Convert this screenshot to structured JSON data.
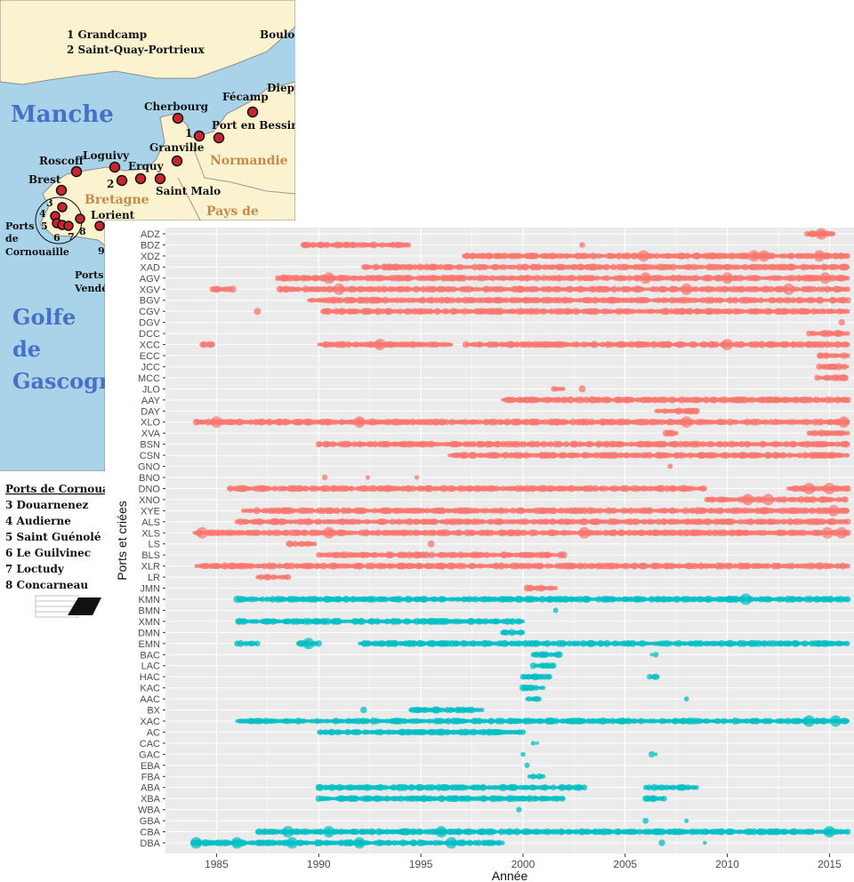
{
  "map": {
    "list_1": "1 Grandcamp",
    "list_2": "2 Saint-Quay-Portrieux",
    "sea_manche": "Manche",
    "golfe_1": "Golfe",
    "golfe_2": "de",
    "golfe_3": "Gascogr",
    "region_normandie": "Normandie",
    "region_bretagne": "Bretagne",
    "region_pays": "Pays de",
    "ports_corn_1": "Ports",
    "ports_corn_2": "de",
    "ports_corn_3": "Cornouaille",
    "ports_vend_1": "Ports",
    "ports_vend_2": "Vendé",
    "cities": {
      "boulogne": "Boulog",
      "dieppe": "Diepp",
      "fecamp": "Fécamp",
      "cherbourg": "Cherbourg",
      "port_bessin": "Port en Bessin",
      "granville": "Granville",
      "saint_malo": "Saint Malo",
      "roscoff": "Roscoff",
      "loguivy": "Loguivy",
      "erquy": "Erquy",
      "brest": "Brest",
      "lorient": "Lorient"
    },
    "nums": {
      "n1": "1",
      "n2": "2",
      "n3": "3",
      "n4": "4",
      "n5": "5",
      "n6": "6",
      "n7": "7",
      "n8": "8",
      "n9": "9"
    },
    "legend_title": "Ports de Cornouai",
    "legend_items": [
      "3 Douarnenez",
      "4 Audierne",
      "5 Saint Guénolé",
      "6 Le Guilvinec",
      "7 Loctudy",
      "8 Concarneau"
    ],
    "colors": {
      "sea": "#a9d3e8",
      "land": "#fbf3cf",
      "port": "#c8252c"
    }
  },
  "chart_data": {
    "type": "scatter",
    "xlabel": "Année",
    "ylabel": "Ports et criées",
    "xlim": [
      1982.5,
      2016.2
    ],
    "x_ticks": [
      1985,
      1990,
      1995,
      2000,
      2005,
      2010,
      2015
    ],
    "categories": [
      "ADZ",
      "BDZ",
      "XDZ",
      "XAD",
      "AGV",
      "XGV",
      "BGV",
      "CGV",
      "DGV",
      "DCC",
      "XCC",
      "ECC",
      "JCC",
      "MCC",
      "JLO",
      "AAY",
      "DAY",
      "XLO",
      "XVA",
      "BSN",
      "CSN",
      "GNO",
      "BNO",
      "DNO",
      "XNO",
      "XYE",
      "ALS",
      "XLS",
      "LS",
      "BLS",
      "XLR",
      "LR",
      "JMN",
      "KMN",
      "BMN",
      "XMN",
      "DMN",
      "EMN",
      "BAC",
      "LAC",
      "HAC",
      "KAC",
      "AAC",
      "BX",
      "XAC",
      "AC",
      "CAC",
      "GAC",
      "EBA",
      "FBA",
      "ABA",
      "XBA",
      "WBA",
      "GBA",
      "CBA",
      "DBA"
    ],
    "colors": {
      "group1": "#f8766d",
      "group2": "#00bfc4",
      "panel": "#ebebeb",
      "grid": "#ffffff"
    },
    "series": [
      {
        "category": "ADZ",
        "group": 1,
        "ranges": [
          [
            2013.9,
            2015.2
          ]
        ],
        "large_points": [
          2014.6
        ]
      },
      {
        "category": "BDZ",
        "group": 1,
        "ranges": [
          [
            1989.2,
            1994.4
          ],
          [
            2002.9,
            2003.0
          ]
        ],
        "large_points": []
      },
      {
        "category": "XDZ",
        "group": 1,
        "ranges": [
          [
            1997.1,
            2015.9
          ]
        ],
        "large_points": [
          2005.9,
          2011.3,
          2011.8,
          2014.5
        ]
      },
      {
        "category": "XAD",
        "group": 1,
        "ranges": [
          [
            1992.2,
            2015.9
          ]
        ],
        "large_points": []
      },
      {
        "category": "AGV",
        "group": 1,
        "ranges": [
          [
            1988.0,
            2015.9
          ]
        ],
        "large_points": [
          1990.5,
          2006.0,
          2010.0,
          2014.8
        ]
      },
      {
        "category": "XGV",
        "group": 1,
        "ranges": [
          [
            1984.8,
            1985.8
          ],
          [
            1988.1,
            2015.9
          ]
        ],
        "large_points": [
          1991.0,
          2008.0,
          2013.0
        ]
      },
      {
        "category": "BGV",
        "group": 1,
        "ranges": [
          [
            1989.5,
            2015.9
          ]
        ],
        "large_points": []
      },
      {
        "category": "CGV",
        "group": 1,
        "ranges": [
          [
            1987.0,
            1987.1
          ],
          [
            1990.2,
            2015.9
          ]
        ],
        "large_points": []
      },
      {
        "category": "DGV",
        "group": 1,
        "ranges": [
          [
            2015.6,
            2015.7
          ]
        ],
        "large_points": []
      },
      {
        "category": "DCC",
        "group": 1,
        "ranges": [
          [
            2014.0,
            2015.9
          ]
        ],
        "large_points": []
      },
      {
        "category": "XCC",
        "group": 1,
        "ranges": [
          [
            1984.3,
            1984.8
          ],
          [
            1990.0,
            1996.5
          ],
          [
            1997.2,
            2015.9
          ]
        ],
        "large_points": [
          1993.0,
          2010.0
        ]
      },
      {
        "category": "ECC",
        "group": 1,
        "ranges": [
          [
            2014.5,
            2015.9
          ]
        ],
        "large_points": []
      },
      {
        "category": "JCC",
        "group": 1,
        "ranges": [
          [
            2014.5,
            2015.9
          ]
        ],
        "large_points": []
      },
      {
        "category": "MCC",
        "group": 1,
        "ranges": [
          [
            2014.4,
            2015.8
          ]
        ],
        "large_points": []
      },
      {
        "category": "JLO",
        "group": 1,
        "ranges": [
          [
            2001.5,
            2002.0
          ],
          [
            2002.9,
            2003.0
          ]
        ],
        "large_points": []
      },
      {
        "category": "AAY",
        "group": 1,
        "ranges": [
          [
            1999.0,
            2015.9
          ]
        ],
        "large_points": []
      },
      {
        "category": "DAY",
        "group": 1,
        "ranges": [
          [
            2006.5,
            2008.5
          ]
        ],
        "large_points": []
      },
      {
        "category": "XLO",
        "group": 1,
        "ranges": [
          [
            1984.0,
            2015.9
          ]
        ],
        "large_points": [
          1985.0,
          1992.0,
          2008.0,
          2015.7
        ]
      },
      {
        "category": "XVA",
        "group": 1,
        "ranges": [
          [
            2007.0,
            2007.5
          ],
          [
            2014.0,
            2015.9
          ]
        ],
        "large_points": []
      },
      {
        "category": "BSN",
        "group": 1,
        "ranges": [
          [
            1990.0,
            2015.9
          ]
        ],
        "large_points": []
      },
      {
        "category": "CSN",
        "group": 1,
        "ranges": [
          [
            1996.4,
            2015.9
          ]
        ],
        "large_points": []
      },
      {
        "category": "GNO",
        "group": 1,
        "ranges": [
          [
            2007.2,
            2007.3
          ]
        ],
        "large_points": []
      },
      {
        "category": "BNO",
        "group": 1,
        "ranges": [
          [
            1990.3,
            1990.4
          ],
          [
            1992.4,
            1992.5
          ],
          [
            1994.8,
            1994.9
          ]
        ],
        "large_points": []
      },
      {
        "category": "DNO",
        "group": 1,
        "ranges": [
          [
            1985.6,
            2008.9
          ],
          [
            2013.0,
            2015.9
          ]
        ],
        "large_points": [
          2014.0,
          2015.0
        ]
      },
      {
        "category": "XNO",
        "group": 1,
        "ranges": [
          [
            2009.0,
            2015.8
          ]
        ],
        "large_points": [
          2011.0,
          2012.0
        ]
      },
      {
        "category": "XYE",
        "group": 1,
        "ranges": [
          [
            1986.3,
            2015.9
          ]
        ],
        "large_points": [
          2015.2
        ]
      },
      {
        "category": "ALS",
        "group": 1,
        "ranges": [
          [
            1986.0,
            2015.9
          ]
        ],
        "large_points": []
      },
      {
        "category": "XLS",
        "group": 1,
        "ranges": [
          [
            1983.9,
            2015.9
          ]
        ],
        "large_points": [
          1984.3,
          1990.5,
          2003.0,
          2014.9,
          2015.6
        ]
      },
      {
        "category": "LS",
        "group": 1,
        "ranges": [
          [
            1988.5,
            1989.8
          ],
          [
            1995.5,
            1995.6
          ]
        ],
        "large_points": []
      },
      {
        "category": "BLS",
        "group": 1,
        "ranges": [
          [
            1990.0,
            2002.0
          ]
        ],
        "large_points": []
      },
      {
        "category": "XLR",
        "group": 1,
        "ranges": [
          [
            1984.0,
            2015.9
          ]
        ],
        "large_points": []
      },
      {
        "category": "LR",
        "group": 1,
        "ranges": [
          [
            1987.0,
            1988.5
          ]
        ],
        "large_points": []
      },
      {
        "category": "JMN",
        "group": 1,
        "ranges": [
          [
            2000.2,
            2001.6
          ]
        ],
        "large_points": []
      },
      {
        "category": "KMN",
        "group": 2,
        "ranges": [
          [
            1986.0,
            2015.9
          ]
        ],
        "large_points": [
          2010.9
        ]
      },
      {
        "category": "BMN",
        "group": 2,
        "ranges": [
          [
            2001.6,
            2001.7
          ]
        ],
        "large_points": []
      },
      {
        "category": "XMN",
        "group": 2,
        "ranges": [
          [
            1986.0,
            2000.0
          ]
        ],
        "large_points": []
      },
      {
        "category": "DMN",
        "group": 2,
        "ranges": [
          [
            1999.0,
            2000.0
          ]
        ],
        "large_points": []
      },
      {
        "category": "EMN",
        "group": 2,
        "ranges": [
          [
            1986.0,
            1987.0
          ],
          [
            1989.0,
            1990.0
          ],
          [
            1992.0,
            2015.9
          ]
        ],
        "large_points": [
          1989.5
        ]
      },
      {
        "category": "BAC",
        "group": 2,
        "ranges": [
          [
            2000.5,
            2001.8
          ],
          [
            2006.3,
            2006.5
          ]
        ],
        "large_points": []
      },
      {
        "category": "LAC",
        "group": 2,
        "ranges": [
          [
            2000.5,
            2001.5
          ]
        ],
        "large_points": []
      },
      {
        "category": "HAC",
        "group": 2,
        "ranges": [
          [
            2000.0,
            2001.3
          ],
          [
            2006.2,
            2006.6
          ]
        ],
        "large_points": []
      },
      {
        "category": "KAC",
        "group": 2,
        "ranges": [
          [
            2000.0,
            2001.0
          ]
        ],
        "large_points": []
      },
      {
        "category": "AAC",
        "group": 2,
        "ranges": [
          [
            2000.2,
            2000.8
          ],
          [
            2008.0,
            2008.1
          ]
        ],
        "large_points": []
      },
      {
        "category": "BX",
        "group": 2,
        "ranges": [
          [
            1992.2,
            1992.3
          ],
          [
            1994.5,
            1998.0
          ]
        ],
        "large_points": []
      },
      {
        "category": "XAC",
        "group": 2,
        "ranges": [
          [
            1986.0,
            2015.9
          ]
        ],
        "large_points": [
          2014.0,
          2015.3
        ]
      },
      {
        "category": "AC",
        "group": 2,
        "ranges": [
          [
            1990.0,
            2000.0
          ]
        ],
        "large_points": []
      },
      {
        "category": "CAC",
        "group": 2,
        "ranges": [
          [
            2000.5,
            2000.7
          ]
        ],
        "large_points": []
      },
      {
        "category": "GAC",
        "group": 2,
        "ranges": [
          [
            2000.0,
            2000.1
          ],
          [
            2006.3,
            2006.5
          ]
        ],
        "large_points": []
      },
      {
        "category": "EBA",
        "group": 2,
        "ranges": [
          [
            2000.2,
            2000.3
          ]
        ],
        "large_points": []
      },
      {
        "category": "FBA",
        "group": 2,
        "ranges": [
          [
            2000.3,
            2001.0
          ]
        ],
        "large_points": []
      },
      {
        "category": "ABA",
        "group": 2,
        "ranges": [
          [
            1990.0,
            2003.0
          ],
          [
            2006.0,
            2008.5
          ]
        ],
        "large_points": []
      },
      {
        "category": "XBA",
        "group": 2,
        "ranges": [
          [
            1990.0,
            2002.0
          ],
          [
            2006.0,
            2006.9
          ]
        ],
        "large_points": []
      },
      {
        "category": "WBA",
        "group": 2,
        "ranges": [
          [
            1999.8,
            1999.9
          ]
        ],
        "large_points": []
      },
      {
        "category": "GBA",
        "group": 2,
        "ranges": [
          [
            2006.0,
            2006.1
          ],
          [
            2008.0,
            2008.1
          ]
        ],
        "large_points": []
      },
      {
        "category": "CBA",
        "group": 2,
        "ranges": [
          [
            1987.0,
            2015.9
          ]
        ],
        "large_points": [
          1988.5,
          1990.5,
          1996.0,
          2015.0
        ]
      },
      {
        "category": "DBA",
        "group": 2,
        "ranges": [
          [
            1983.8,
            1999.0
          ],
          [
            2006.8,
            2006.9
          ],
          [
            2008.9,
            2009.0
          ]
        ],
        "large_points": [
          1984.0,
          1986.0,
          1988.7,
          1992.0,
          1996.5
        ]
      }
    ]
  }
}
